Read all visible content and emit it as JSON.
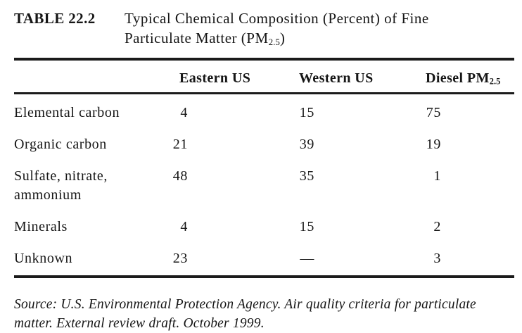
{
  "document": {
    "table_label": "TABLE 22.2",
    "title_line1": "Typical Chemical Composition (Percent) of Fine",
    "title_line2": {
      "pre": "Particulate Matter (PM",
      "sub": "2.5",
      "post": ")"
    },
    "columns": {
      "col1": "Eastern US",
      "col2": "Western US",
      "col3": {
        "pre": "Diesel PM",
        "sub": "2.5"
      }
    },
    "rows": [
      {
        "label": "Elemental carbon",
        "eastern_us": "4",
        "western_us": "15",
        "diesel": "75"
      },
      {
        "label": "Organic carbon",
        "eastern_us": "21",
        "western_us": "39",
        "diesel": "19"
      },
      {
        "label": "Sulfate, nitrate,\nammonium",
        "eastern_us": "48",
        "western_us": "35",
        "diesel": "1"
      },
      {
        "label": "Minerals",
        "eastern_us": "4",
        "western_us": "15",
        "diesel": "2"
      },
      {
        "label": "Unknown",
        "eastern_us": "23",
        "western_us": "—",
        "diesel": "3"
      }
    ],
    "source_note": "Source: U.S. Environmental Protection Agency. Air quality criteria for particulate\nmatter. External review draft. October 1999."
  }
}
